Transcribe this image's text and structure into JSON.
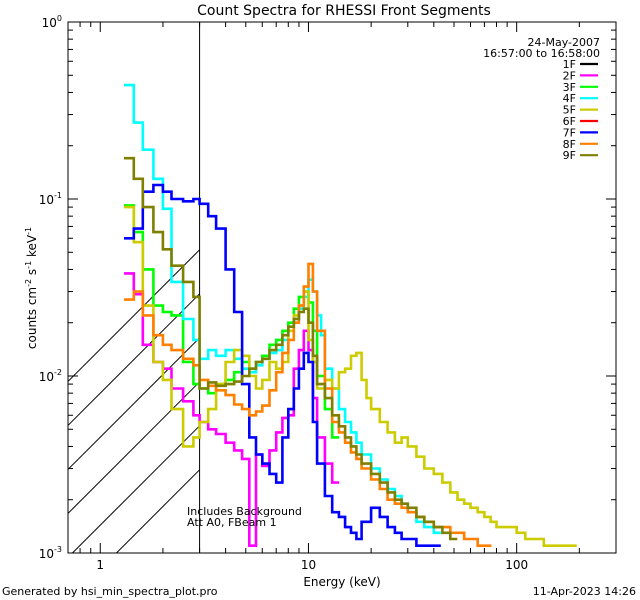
{
  "chart_data": {
    "type": "line",
    "title": "Count Spectra for RHESSI Front Segments",
    "xlabel": "Energy (keV)",
    "ylabel_parts": {
      "base": "counts cm",
      "exp1": "-2",
      "mid": " s",
      "exp2": "-1",
      "mid2": " keV",
      "exp3": "-1"
    },
    "xscale": "log",
    "yscale": "log",
    "xlim": [
      0.7,
      300
    ],
    "ylim": [
      0.001,
      1
    ],
    "x_ticks": [
      {
        "value": 1,
        "label": "1"
      },
      {
        "value": 10,
        "label": "10"
      },
      {
        "value": 100,
        "label": "100"
      }
    ],
    "y_ticks": [
      {
        "value": 1,
        "base": "10",
        "exp": "0"
      },
      {
        "value": 0.1,
        "base": "10",
        "exp": "-1"
      },
      {
        "value": 0.01,
        "base": "10",
        "exp": "-2"
      },
      {
        "value": 0.001,
        "base": "10",
        "exp": "-3"
      }
    ],
    "date": "24-May-2007",
    "time_range": "16:57:00 to 16:58:00",
    "annotation_lines": [
      "Includes Background",
      "Att A0, FBeam 1"
    ],
    "excluded_energy_max": 3,
    "series": [
      {
        "name": "1F",
        "color": "#000000",
        "x": [],
        "y": []
      },
      {
        "name": "2F",
        "color": "#ff00ff",
        "x": [
          1.3,
          1.45,
          1.6,
          1.8,
          2.0,
          2.2,
          2.5,
          2.8,
          3.0,
          3.3,
          3.6,
          4.0,
          4.4,
          4.8,
          5.2,
          5.6,
          6.0,
          6.5,
          7.0,
          7.5,
          8.0,
          8.5,
          9.0,
          9.5,
          10.0,
          10.5,
          11.0,
          12.0,
          13.0
        ],
        "y": [
          0.038,
          0.029,
          0.015,
          0.012,
          0.011,
          0.0085,
          0.0072,
          0.006,
          0.0055,
          0.005,
          0.0047,
          0.0042,
          0.0038,
          0.0034,
          0.0011,
          0.0036,
          0.0031,
          0.0038,
          0.0048,
          0.0058,
          0.006,
          0.011,
          0.014,
          0.018,
          0.014,
          0.0075,
          0.0045,
          0.0032,
          0.0025
        ]
      },
      {
        "name": "3F",
        "color": "#00ff00",
        "x": [
          1.3,
          1.45,
          1.6,
          1.8,
          2.0,
          2.2,
          2.5,
          2.8,
          3.0,
          3.3,
          3.6,
          4.0,
          4.4,
          4.8,
          5.2,
          5.6,
          6.0,
          6.5,
          7.0,
          7.5,
          8.0,
          8.5,
          9.0,
          9.5,
          10.0,
          10.5,
          11.0,
          12.0,
          13.0
        ],
        "y": [
          0.092,
          0.065,
          0.04,
          0.025,
          0.023,
          0.022,
          0.012,
          0.009,
          0.0085,
          0.008,
          0.009,
          0.0095,
          0.0105,
          0.012,
          0.011,
          0.012,
          0.013,
          0.015,
          0.016,
          0.018,
          0.02,
          0.024,
          0.028,
          0.03,
          0.026,
          0.018,
          0.01,
          0.0065,
          0.0045
        ]
      },
      {
        "name": "4F",
        "color": "#00ffff",
        "x": [
          1.3,
          1.45,
          1.6,
          1.8,
          2.0,
          2.2,
          2.5,
          2.8,
          3.0,
          3.3,
          3.6,
          4.0,
          4.4,
          4.8,
          5.2,
          5.6,
          6.0,
          6.5,
          7.0,
          7.5,
          8.0,
          8.5,
          9.0,
          9.5,
          10.0,
          10.5,
          11.0,
          11.5,
          12.0,
          13.0,
          14.0,
          15.0,
          16.0,
          17.0,
          18.0,
          20.0,
          22.0,
          24.0,
          26.0,
          28.0,
          30.0,
          33.0,
          36.0,
          40.0
        ],
        "y": [
          0.44,
          0.27,
          0.19,
          0.13,
          0.088,
          0.034,
          0.021,
          0.016,
          0.0125,
          0.014,
          0.013,
          0.014,
          0.0125,
          0.011,
          0.0105,
          0.0115,
          0.0125,
          0.0135,
          0.014,
          0.016,
          0.018,
          0.021,
          0.024,
          0.028,
          0.035,
          0.03,
          0.022,
          0.017,
          0.011,
          0.0085,
          0.0065,
          0.0055,
          0.0048,
          0.0042,
          0.0036,
          0.003,
          0.0026,
          0.0023,
          0.0021,
          0.0019,
          0.0017,
          0.0015,
          0.0014,
          0.0013
        ]
      },
      {
        "name": "5F",
        "color": "#cccc00",
        "x": [
          1.3,
          1.45,
          1.6,
          1.8,
          2.0,
          2.2,
          2.5,
          2.8,
          3.0,
          3.3,
          3.6,
          4.0,
          4.4,
          4.8,
          5.2,
          5.6,
          6.0,
          6.5,
          7.0,
          7.5,
          8.0,
          8.5,
          9.0,
          9.5,
          10.0,
          10.5,
          11.0,
          12.0,
          13.0,
          14.0,
          15.0,
          16.0,
          17.0,
          18.0,
          19.0,
          20.0,
          22.0,
          24.0,
          26.0,
          28.0,
          30.0,
          33.0,
          36.0,
          40.0,
          44.0,
          48.0,
          52.0,
          56.0,
          60.0,
          65.0,
          70.0,
          75.0,
          80.0,
          90.0,
          100.0,
          110.0,
          120.0,
          135.0,
          150.0,
          165.0,
          180.0
        ],
        "y": [
          0.09,
          0.057,
          0.025,
          0.012,
          0.0095,
          0.0065,
          0.004,
          0.0045,
          0.0055,
          0.0065,
          0.009,
          0.012,
          0.014,
          0.013,
          0.01,
          0.0085,
          0.0095,
          0.012,
          0.011,
          0.012,
          0.018,
          0.022,
          0.025,
          0.03,
          0.016,
          0.012,
          0.0085,
          0.0095,
          0.0085,
          0.0105,
          0.011,
          0.013,
          0.0135,
          0.0095,
          0.0075,
          0.0065,
          0.0055,
          0.0048,
          0.0042,
          0.0045,
          0.004,
          0.0035,
          0.003,
          0.0028,
          0.0025,
          0.0022,
          0.002,
          0.0019,
          0.0018,
          0.0017,
          0.0016,
          0.0015,
          0.0014,
          0.0014,
          0.0013,
          0.0012,
          0.0012,
          0.0011,
          0.0011,
          0.0011,
          0.0011
        ]
      },
      {
        "name": "6F",
        "color": "#ff0000",
        "x": [],
        "y": []
      },
      {
        "name": "7F",
        "color": "#0000ff",
        "x": [
          1.3,
          1.45,
          1.6,
          1.8,
          2.0,
          2.2,
          2.5,
          2.8,
          3.0,
          3.3,
          3.6,
          4.0,
          4.4,
          4.8,
          5.2,
          5.6,
          6.0,
          6.5,
          7.0,
          7.5,
          8.0,
          8.5,
          9.0,
          9.5,
          10.0,
          10.5,
          11.0,
          12.0,
          13.0,
          14.0,
          15.0,
          16.0,
          17.0,
          18.0,
          20.0,
          22.0,
          24.0,
          26.0,
          28.0,
          30.0,
          33.0,
          36.0,
          40.0
        ],
        "y": [
          0.06,
          0.068,
          0.11,
          0.12,
          0.11,
          0.1,
          0.097,
          0.1,
          0.094,
          0.08,
          0.068,
          0.04,
          0.023,
          0.009,
          0.0045,
          0.0036,
          0.0032,
          0.0028,
          0.0025,
          0.0045,
          0.0065,
          0.0085,
          0.011,
          0.0135,
          0.012,
          0.0055,
          0.0032,
          0.0021,
          0.0017,
          0.0016,
          0.0014,
          0.0013,
          0.0012,
          0.0015,
          0.0018,
          0.0016,
          0.0014,
          0.0013,
          0.0012,
          0.0012,
          0.0011,
          0.0011,
          0.0011
        ]
      },
      {
        "name": "8F",
        "color": "#ff8000",
        "x": [
          1.3,
          1.45,
          1.6,
          1.8,
          2.0,
          2.2,
          2.5,
          2.8,
          3.0,
          3.3,
          3.6,
          4.0,
          4.4,
          4.8,
          5.2,
          5.6,
          6.0,
          6.5,
          7.0,
          7.5,
          8.0,
          8.5,
          9.0,
          9.5,
          10.0,
          10.5,
          11.0,
          12.0,
          13.0,
          14.0,
          15.0,
          16.0,
          17.0,
          18.0,
          20.0,
          22.0,
          24.0,
          26.0,
          28.0,
          30.0,
          33.0,
          36.0,
          40.0,
          44.0,
          48.0,
          52.0,
          56.0,
          60.0,
          65.0,
          70.0
        ],
        "y": [
          0.027,
          0.03,
          0.022,
          0.017,
          0.015,
          0.014,
          0.0125,
          0.0115,
          0.0095,
          0.0088,
          0.0083,
          0.0078,
          0.0069,
          0.0065,
          0.006,
          0.0063,
          0.0068,
          0.0083,
          0.0105,
          0.0135,
          0.016,
          0.02,
          0.025,
          0.032,
          0.043,
          0.03,
          0.018,
          0.0085,
          0.0055,
          0.0048,
          0.0042,
          0.0037,
          0.0034,
          0.003,
          0.0026,
          0.0023,
          0.002,
          0.0019,
          0.0018,
          0.0017,
          0.0016,
          0.0015,
          0.0014,
          0.0014,
          0.0013,
          0.0013,
          0.0012,
          0.0012,
          0.0011,
          0.0011
        ]
      },
      {
        "name": "9F",
        "color": "#7f7f00",
        "x": [
          1.3,
          1.45,
          1.6,
          1.8,
          2.0,
          2.2,
          2.5,
          2.8,
          3.0,
          3.3,
          3.6,
          4.0,
          4.4,
          4.8,
          5.2,
          5.6,
          6.0,
          6.5,
          7.0,
          7.5,
          8.0,
          8.5,
          9.0,
          9.5,
          10.0,
          10.5,
          11.0,
          12.0,
          13.0,
          14.0,
          15.0,
          16.0,
          17.0,
          18.0,
          20.0,
          22.0,
          24.0,
          26.0,
          28.0,
          30.0,
          33.0,
          36.0,
          40.0,
          44.0,
          48.0
        ],
        "y": [
          0.17,
          0.13,
          0.09,
          0.065,
          0.052,
          0.042,
          0.034,
          0.028,
          0.0085,
          0.0092,
          0.0088,
          0.009,
          0.0093,
          0.01,
          0.011,
          0.012,
          0.0125,
          0.014,
          0.015,
          0.017,
          0.019,
          0.021,
          0.023,
          0.024,
          0.02,
          0.013,
          0.009,
          0.0075,
          0.006,
          0.0052,
          0.0045,
          0.004,
          0.0036,
          0.0032,
          0.0028,
          0.0025,
          0.0022,
          0.002,
          0.0019,
          0.0018,
          0.0016,
          0.0015,
          0.0014,
          0.0013,
          0.0012
        ]
      }
    ]
  },
  "footer": {
    "generated_by": "Generated by hsi_min_spectra_plot.pro",
    "timestamp": "11-Apr-2023 14:26"
  }
}
